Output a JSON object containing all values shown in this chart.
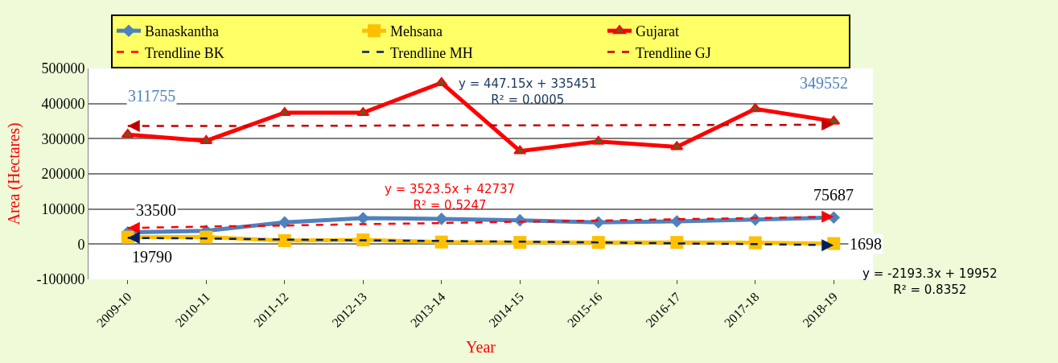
{
  "chart_data": {
    "type": "line",
    "xlabel": "Year",
    "ylabel": "Area (Hectares)",
    "categories": [
      "2009-10",
      "2010-11",
      "2011-12",
      "2012-13",
      "2013-14",
      "2014-15",
      "2015-16",
      "2016-17",
      "2017-18",
      "2018-19"
    ],
    "ylim": [
      -100000,
      500000
    ],
    "yticks": [
      -100000,
      0,
      100000,
      200000,
      300000,
      400000,
      500000
    ],
    "grid": "y",
    "legend": "top",
    "series": [
      {
        "name": "Banaskantha",
        "color": "#4f81bd",
        "marker": "diamond",
        "line_style": "solid",
        "values": [
          33500,
          38000,
          62000,
          74000,
          72000,
          68000,
          62000,
          65000,
          70000,
          75687
        ],
        "value_labels": [
          "33500",
          null,
          null,
          null,
          null,
          null,
          null,
          null,
          null,
          "75687"
        ]
      },
      {
        "name": "Mehsana",
        "color": "#ffc000",
        "marker": "square",
        "line_style": "solid",
        "values": [
          19790,
          20000,
          10000,
          12000,
          6000,
          5000,
          5000,
          5000,
          4000,
          1698
        ],
        "value_labels": [
          "19790",
          null,
          null,
          null,
          null,
          null,
          null,
          null,
          null,
          "1698"
        ]
      },
      {
        "name": "Gujarat",
        "color": "#ff0000",
        "marker": "triangle",
        "line_style": "solid",
        "values": [
          311755,
          294000,
          374000,
          374000,
          459000,
          265000,
          292000,
          277000,
          385000,
          349552
        ],
        "value_labels": [
          "311755",
          null,
          null,
          null,
          null,
          null,
          null,
          null,
          null,
          "349552"
        ]
      },
      {
        "name": "Trendline BK",
        "color": "#ff0000",
        "line_style": "dashed",
        "values": [
          46000,
          50000,
          53000,
          57000,
          60000,
          64000,
          67000,
          71000,
          74000,
          78000
        ]
      },
      {
        "name": "Trendline MH",
        "color": "#002060",
        "line_style": "dashed",
        "values": [
          18000,
          16000,
          13000,
          11000,
          9000,
          7000,
          5000,
          2000,
          0,
          -3000
        ]
      },
      {
        "name": "Trendline GJ",
        "color": "#c00000",
        "line_style": "dashed",
        "values": [
          336000,
          336000,
          337000,
          337000,
          338000,
          338000,
          338000,
          339000,
          339000,
          340000
        ]
      }
    ],
    "annotations": [
      "y = 447.15x + 335451\nR² = 0.0005",
      "y = 3523.5x + 42737\nR² = 0.5247",
      "y = -2193.3x + 19952\nR² = 0.8352"
    ]
  }
}
